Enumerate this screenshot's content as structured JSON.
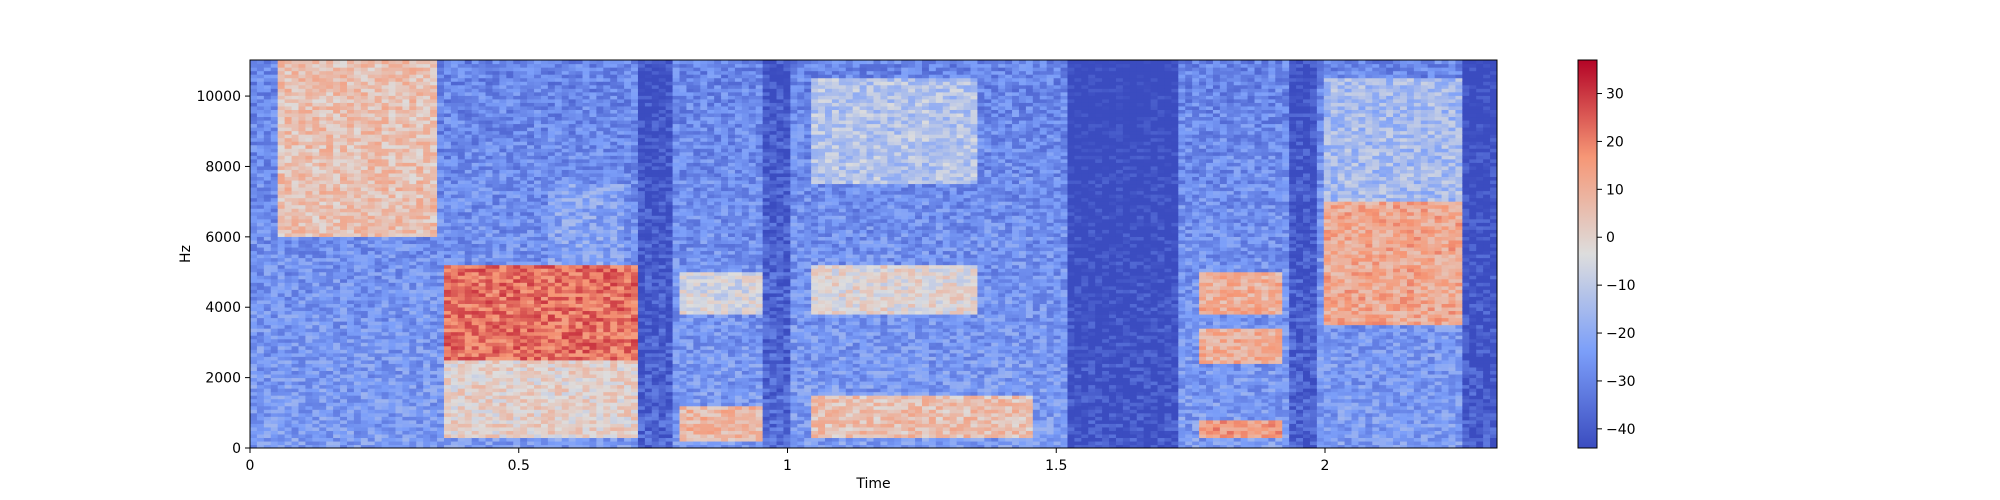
{
  "chart_data": {
    "type": "heatmap",
    "title": "",
    "xlabel": "Time",
    "ylabel": "Hz",
    "xlim": [
      0,
      2.32
    ],
    "ylim": [
      0,
      11025
    ],
    "x_ticks": [
      0,
      0.5,
      1,
      1.5,
      2
    ],
    "x_tick_labels": [
      "0",
      "0.5",
      "1",
      "1.5",
      "2"
    ],
    "y_ticks": [
      0,
      2000,
      4000,
      6000,
      8000,
      10000
    ],
    "y_tick_labels": [
      "0",
      "2000",
      "4000",
      "6000",
      "8000",
      "10000"
    ],
    "colormap": "coolwarm",
    "colorbar": {
      "vmin": -44,
      "vmax": 37,
      "ticks": [
        -40,
        -30,
        -20,
        -10,
        0,
        10,
        20,
        30
      ],
      "tick_labels": [
        "−40",
        "−30",
        "−20",
        "−10",
        "0",
        "10",
        "20",
        "30"
      ]
    },
    "regions": [
      {
        "t0": 0.05,
        "t1": 0.35,
        "f0": 6000,
        "f1": 11000,
        "level": 5
      },
      {
        "t0": 0.36,
        "t1": 0.72,
        "f0": 2500,
        "f1": 5200,
        "level": 22
      },
      {
        "t0": 0.36,
        "t1": 0.72,
        "f0": 300,
        "f1": 2500,
        "level": 0
      },
      {
        "t0": 0.55,
        "t1": 0.7,
        "f0": 5200,
        "f1": 7500,
        "level": -22
      },
      {
        "t0": 0.8,
        "t1": 0.95,
        "f0": 200,
        "f1": 1200,
        "level": 8
      },
      {
        "t0": 0.8,
        "t1": 0.95,
        "f0": 3800,
        "f1": 5000,
        "level": -5
      },
      {
        "t0": 1.05,
        "t1": 1.35,
        "f0": 3800,
        "f1": 5200,
        "level": -2
      },
      {
        "t0": 1.05,
        "t1": 1.35,
        "f0": 7500,
        "f1": 10500,
        "level": -12
      },
      {
        "t0": 1.05,
        "t1": 1.45,
        "f0": 300,
        "f1": 1500,
        "level": 5
      },
      {
        "t0": 1.76,
        "t1": 1.92,
        "f0": 3800,
        "f1": 5000,
        "level": 10
      },
      {
        "t0": 1.76,
        "t1": 1.92,
        "f0": 2400,
        "f1": 3400,
        "level": 10
      },
      {
        "t0": 1.76,
        "t1": 1.92,
        "f0": 300,
        "f1": 800,
        "level": 15
      },
      {
        "t0": 2.0,
        "t1": 2.25,
        "f0": 3500,
        "f1": 7000,
        "level": 12
      },
      {
        "t0": 2.0,
        "t1": 2.25,
        "f0": 7000,
        "f1": 10500,
        "level": -15
      }
    ]
  },
  "colors": {
    "cold": "#3b4cc0",
    "neutral": "#dddddd",
    "hot": "#b40426"
  }
}
